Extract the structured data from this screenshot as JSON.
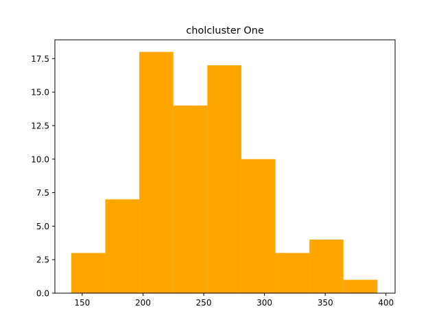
{
  "chart_data": {
    "type": "bar",
    "title": "cholcluster One",
    "xlabel": "",
    "ylabel": "",
    "xlim": [
      127.5,
      407.5
    ],
    "ylim": [
      0,
      18.9
    ],
    "bin_edges": [
      141,
      169,
      197,
      225,
      253,
      281,
      309,
      337,
      365,
      393
    ],
    "values": [
      3,
      7,
      18,
      14,
      17,
      10,
      3,
      4,
      1
    ],
    "xticks": [
      {
        "value": 150,
        "label": "150"
      },
      {
        "value": 200,
        "label": "200"
      },
      {
        "value": 250,
        "label": "250"
      },
      {
        "value": 300,
        "label": "300"
      },
      {
        "value": 350,
        "label": "350"
      },
      {
        "value": 400,
        "label": "400"
      }
    ],
    "yticks": [
      {
        "value": 0,
        "label": "0.0"
      },
      {
        "value": 2.5,
        "label": "2.5"
      },
      {
        "value": 5,
        "label": "5.0"
      },
      {
        "value": 7.5,
        "label": "7.5"
      },
      {
        "value": 10,
        "label": "10.0"
      },
      {
        "value": 12.5,
        "label": "12.5"
      },
      {
        "value": 15,
        "label": "15.0"
      },
      {
        "value": 17.5,
        "label": "17.5"
      }
    ],
    "bar_color": "#ffa500",
    "grid": false,
    "legend": "none"
  }
}
